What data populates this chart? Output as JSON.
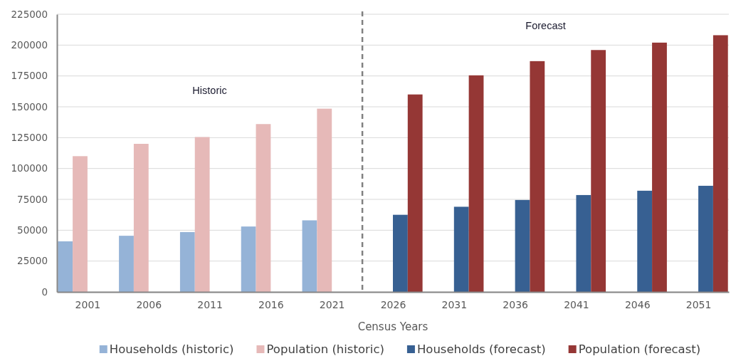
{
  "chart_data": {
    "type": "bar",
    "xlabel": "Census Years",
    "x": [
      2001,
      2006,
      2011,
      2016,
      2021,
      2026,
      2031,
      2036,
      2041,
      2046,
      2051
    ],
    "xlim": [
      1998.5,
      2053.5
    ],
    "xticks": [
      2001,
      2006,
      2011,
      2016,
      2021,
      2026,
      2031,
      2036,
      2041,
      2046,
      2051
    ],
    "ylim": [
      0,
      225000
    ],
    "yticks": [
      0,
      25000,
      50000,
      75000,
      100000,
      125000,
      150000,
      175000,
      200000,
      225000
    ],
    "series": [
      {
        "name": "Households (historic)",
        "color": "#95b3d7",
        "values": [
          41000,
          45500,
          48500,
          53000,
          58000,
          null,
          null,
          null,
          null,
          null,
          null
        ]
      },
      {
        "name": "Population (historic)",
        "color": "#e6b9b8",
        "values": [
          110000,
          120000,
          125500,
          136000,
          148500,
          null,
          null,
          null,
          null,
          null,
          null
        ]
      },
      {
        "name": "Households (forecast)",
        "color": "#376092",
        "values": [
          null,
          null,
          null,
          null,
          null,
          62500,
          69000,
          74500,
          78500,
          82000,
          86000
        ]
      },
      {
        "name": "Population (forecast)",
        "color": "#953735",
        "values": [
          null,
          null,
          null,
          null,
          null,
          160000,
          175500,
          187000,
          196000,
          202000,
          208000
        ]
      }
    ],
    "ref_lines": [
      {
        "axis": "x",
        "value": 2023.5,
        "color": "#808080",
        "line_style": "dashed"
      }
    ],
    "annotations": [
      "Historic",
      "Forecast"
    ],
    "grid": "y",
    "legend": "bottom"
  }
}
